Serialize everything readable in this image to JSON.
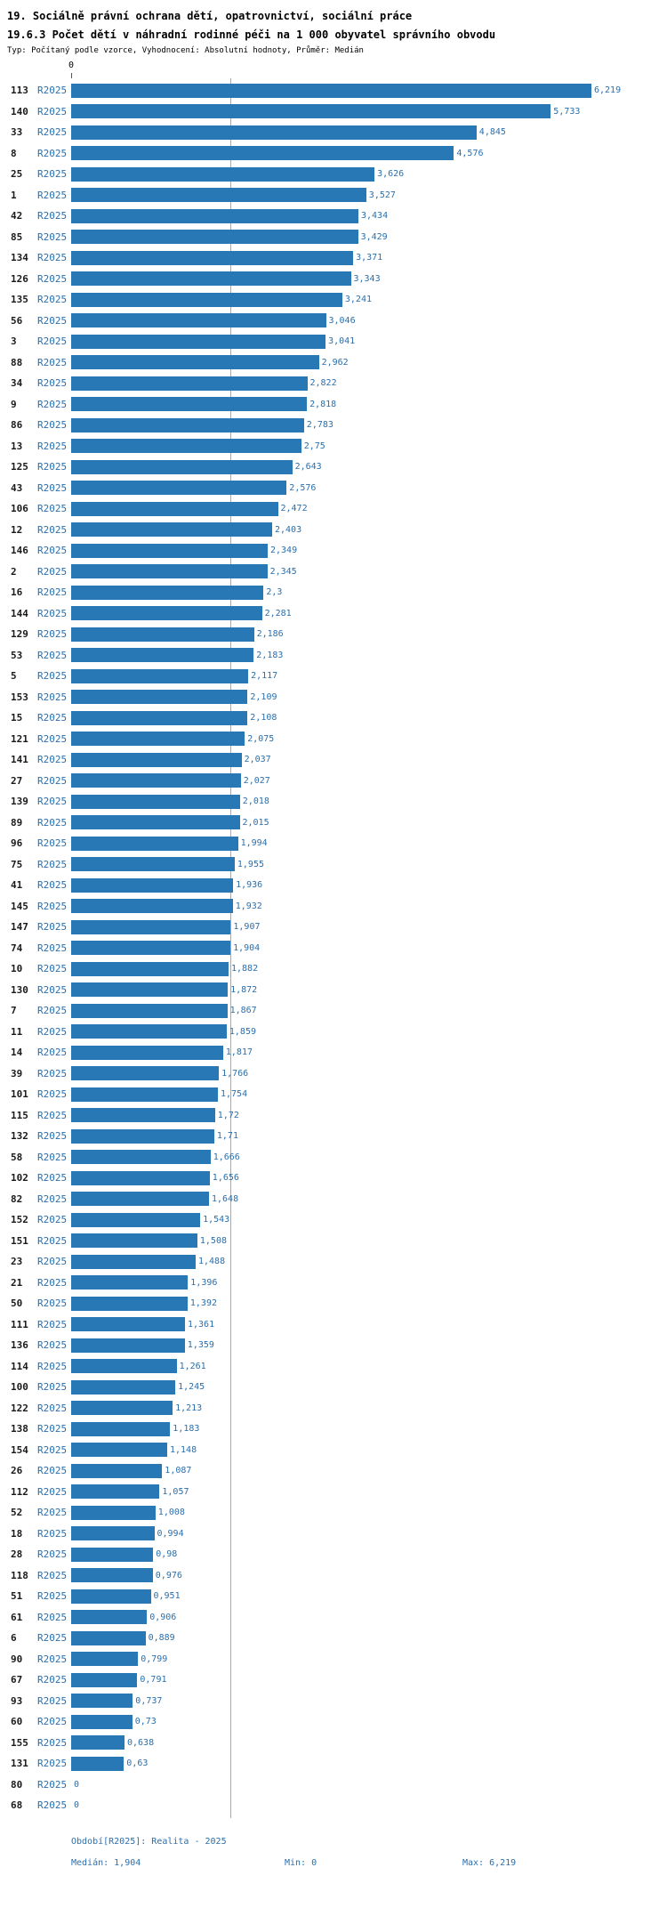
{
  "header": {
    "title_line1": "19. Sociálně právní ochrana dětí, opatrovnictví, sociální práce",
    "title_line2": "19.6.3 Počet dětí v náhradní rodinné péči na 1 000 obyvatel správního obvodu",
    "subtitle": "Typ: Počítaný podle vzorce, Vyhodnocení: Absolutní hodnoty, Průměr: Medián"
  },
  "footer": {
    "period": "Období[R2025]: Realita - 2025",
    "median_label": "Medián: 1,904",
    "min_label": "Min: 0",
    "max_label": "Max: 6,219"
  },
  "chart_data": {
    "type": "bar",
    "orientation": "horizontal",
    "title": "19.6.3 Počet dětí v náhradní rodinné péči na 1 000 obyvatel správního obvodu",
    "series_label": "R2025",
    "bar_color": "#2878b5",
    "median_line_color": "#8ab0d6",
    "axis": {
      "min": 0,
      "max": 6.219,
      "zero_label": "0"
    },
    "median": 1.904,
    "rows": [
      {
        "code": "113",
        "value": 6.219,
        "display": "6,219"
      },
      {
        "code": "140",
        "value": 5.733,
        "display": "5,733"
      },
      {
        "code": "33",
        "value": 4.845,
        "display": "4,845"
      },
      {
        "code": "8",
        "value": 4.576,
        "display": "4,576"
      },
      {
        "code": "25",
        "value": 3.626,
        "display": "3,626"
      },
      {
        "code": "1",
        "value": 3.527,
        "display": "3,527"
      },
      {
        "code": "42",
        "value": 3.434,
        "display": "3,434"
      },
      {
        "code": "85",
        "value": 3.429,
        "display": "3,429"
      },
      {
        "code": "134",
        "value": 3.371,
        "display": "3,371"
      },
      {
        "code": "126",
        "value": 3.343,
        "display": "3,343"
      },
      {
        "code": "135",
        "value": 3.241,
        "display": "3,241"
      },
      {
        "code": "56",
        "value": 3.046,
        "display": "3,046"
      },
      {
        "code": "3",
        "value": 3.041,
        "display": "3,041"
      },
      {
        "code": "88",
        "value": 2.962,
        "display": "2,962"
      },
      {
        "code": "34",
        "value": 2.822,
        "display": "2,822"
      },
      {
        "code": "9",
        "value": 2.818,
        "display": "2,818"
      },
      {
        "code": "86",
        "value": 2.783,
        "display": "2,783"
      },
      {
        "code": "13",
        "value": 2.75,
        "display": "2,75"
      },
      {
        "code": "125",
        "value": 2.643,
        "display": "2,643"
      },
      {
        "code": "43",
        "value": 2.576,
        "display": "2,576"
      },
      {
        "code": "106",
        "value": 2.472,
        "display": "2,472"
      },
      {
        "code": "12",
        "value": 2.403,
        "display": "2,403"
      },
      {
        "code": "146",
        "value": 2.349,
        "display": "2,349"
      },
      {
        "code": "2",
        "value": 2.345,
        "display": "2,345"
      },
      {
        "code": "16",
        "value": 2.3,
        "display": "2,3"
      },
      {
        "code": "144",
        "value": 2.281,
        "display": "2,281"
      },
      {
        "code": "129",
        "value": 2.186,
        "display": "2,186"
      },
      {
        "code": "53",
        "value": 2.183,
        "display": "2,183"
      },
      {
        "code": "5",
        "value": 2.117,
        "display": "2,117"
      },
      {
        "code": "153",
        "value": 2.109,
        "display": "2,109"
      },
      {
        "code": "15",
        "value": 2.108,
        "display": "2,108"
      },
      {
        "code": "121",
        "value": 2.075,
        "display": "2,075"
      },
      {
        "code": "141",
        "value": 2.037,
        "display": "2,037"
      },
      {
        "code": "27",
        "value": 2.027,
        "display": "2,027"
      },
      {
        "code": "139",
        "value": 2.018,
        "display": "2,018"
      },
      {
        "code": "89",
        "value": 2.015,
        "display": "2,015"
      },
      {
        "code": "96",
        "value": 1.994,
        "display": "1,994"
      },
      {
        "code": "75",
        "value": 1.955,
        "display": "1,955"
      },
      {
        "code": "41",
        "value": 1.936,
        "display": "1,936"
      },
      {
        "code": "145",
        "value": 1.932,
        "display": "1,932"
      },
      {
        "code": "147",
        "value": 1.907,
        "display": "1,907"
      },
      {
        "code": "74",
        "value": 1.904,
        "display": "1,904"
      },
      {
        "code": "10",
        "value": 1.882,
        "display": "1,882"
      },
      {
        "code": "130",
        "value": 1.872,
        "display": "1,872"
      },
      {
        "code": "7",
        "value": 1.867,
        "display": "1,867"
      },
      {
        "code": "11",
        "value": 1.859,
        "display": "1,859"
      },
      {
        "code": "14",
        "value": 1.817,
        "display": "1,817"
      },
      {
        "code": "39",
        "value": 1.766,
        "display": "1,766"
      },
      {
        "code": "101",
        "value": 1.754,
        "display": "1,754"
      },
      {
        "code": "115",
        "value": 1.72,
        "display": "1,72"
      },
      {
        "code": "132",
        "value": 1.71,
        "display": "1,71"
      },
      {
        "code": "58",
        "value": 1.666,
        "display": "1,666"
      },
      {
        "code": "102",
        "value": 1.656,
        "display": "1,656"
      },
      {
        "code": "82",
        "value": 1.648,
        "display": "1,648"
      },
      {
        "code": "152",
        "value": 1.543,
        "display": "1,543"
      },
      {
        "code": "151",
        "value": 1.508,
        "display": "1,508"
      },
      {
        "code": "23",
        "value": 1.488,
        "display": "1,488"
      },
      {
        "code": "21",
        "value": 1.396,
        "display": "1,396"
      },
      {
        "code": "50",
        "value": 1.392,
        "display": "1,392"
      },
      {
        "code": "111",
        "value": 1.361,
        "display": "1,361"
      },
      {
        "code": "136",
        "value": 1.359,
        "display": "1,359"
      },
      {
        "code": "114",
        "value": 1.261,
        "display": "1,261"
      },
      {
        "code": "100",
        "value": 1.245,
        "display": "1,245"
      },
      {
        "code": "122",
        "value": 1.213,
        "display": "1,213"
      },
      {
        "code": "138",
        "value": 1.183,
        "display": "1,183"
      },
      {
        "code": "154",
        "value": 1.148,
        "display": "1,148"
      },
      {
        "code": "26",
        "value": 1.087,
        "display": "1,087"
      },
      {
        "code": "112",
        "value": 1.057,
        "display": "1,057"
      },
      {
        "code": "52",
        "value": 1.008,
        "display": "1,008"
      },
      {
        "code": "18",
        "value": 0.994,
        "display": "0,994"
      },
      {
        "code": "28",
        "value": 0.98,
        "display": "0,98"
      },
      {
        "code": "118",
        "value": 0.976,
        "display": "0,976"
      },
      {
        "code": "51",
        "value": 0.951,
        "display": "0,951"
      },
      {
        "code": "61",
        "value": 0.906,
        "display": "0,906"
      },
      {
        "code": "6",
        "value": 0.889,
        "display": "0,889"
      },
      {
        "code": "90",
        "value": 0.799,
        "display": "0,799"
      },
      {
        "code": "67",
        "value": 0.791,
        "display": "0,791"
      },
      {
        "code": "93",
        "value": 0.737,
        "display": "0,737"
      },
      {
        "code": "60",
        "value": 0.73,
        "display": "0,73"
      },
      {
        "code": "155",
        "value": 0.638,
        "display": "0,638"
      },
      {
        "code": "131",
        "value": 0.63,
        "display": "0,63"
      },
      {
        "code": "80",
        "value": 0,
        "display": "0"
      },
      {
        "code": "68",
        "value": 0,
        "display": "0"
      }
    ]
  }
}
